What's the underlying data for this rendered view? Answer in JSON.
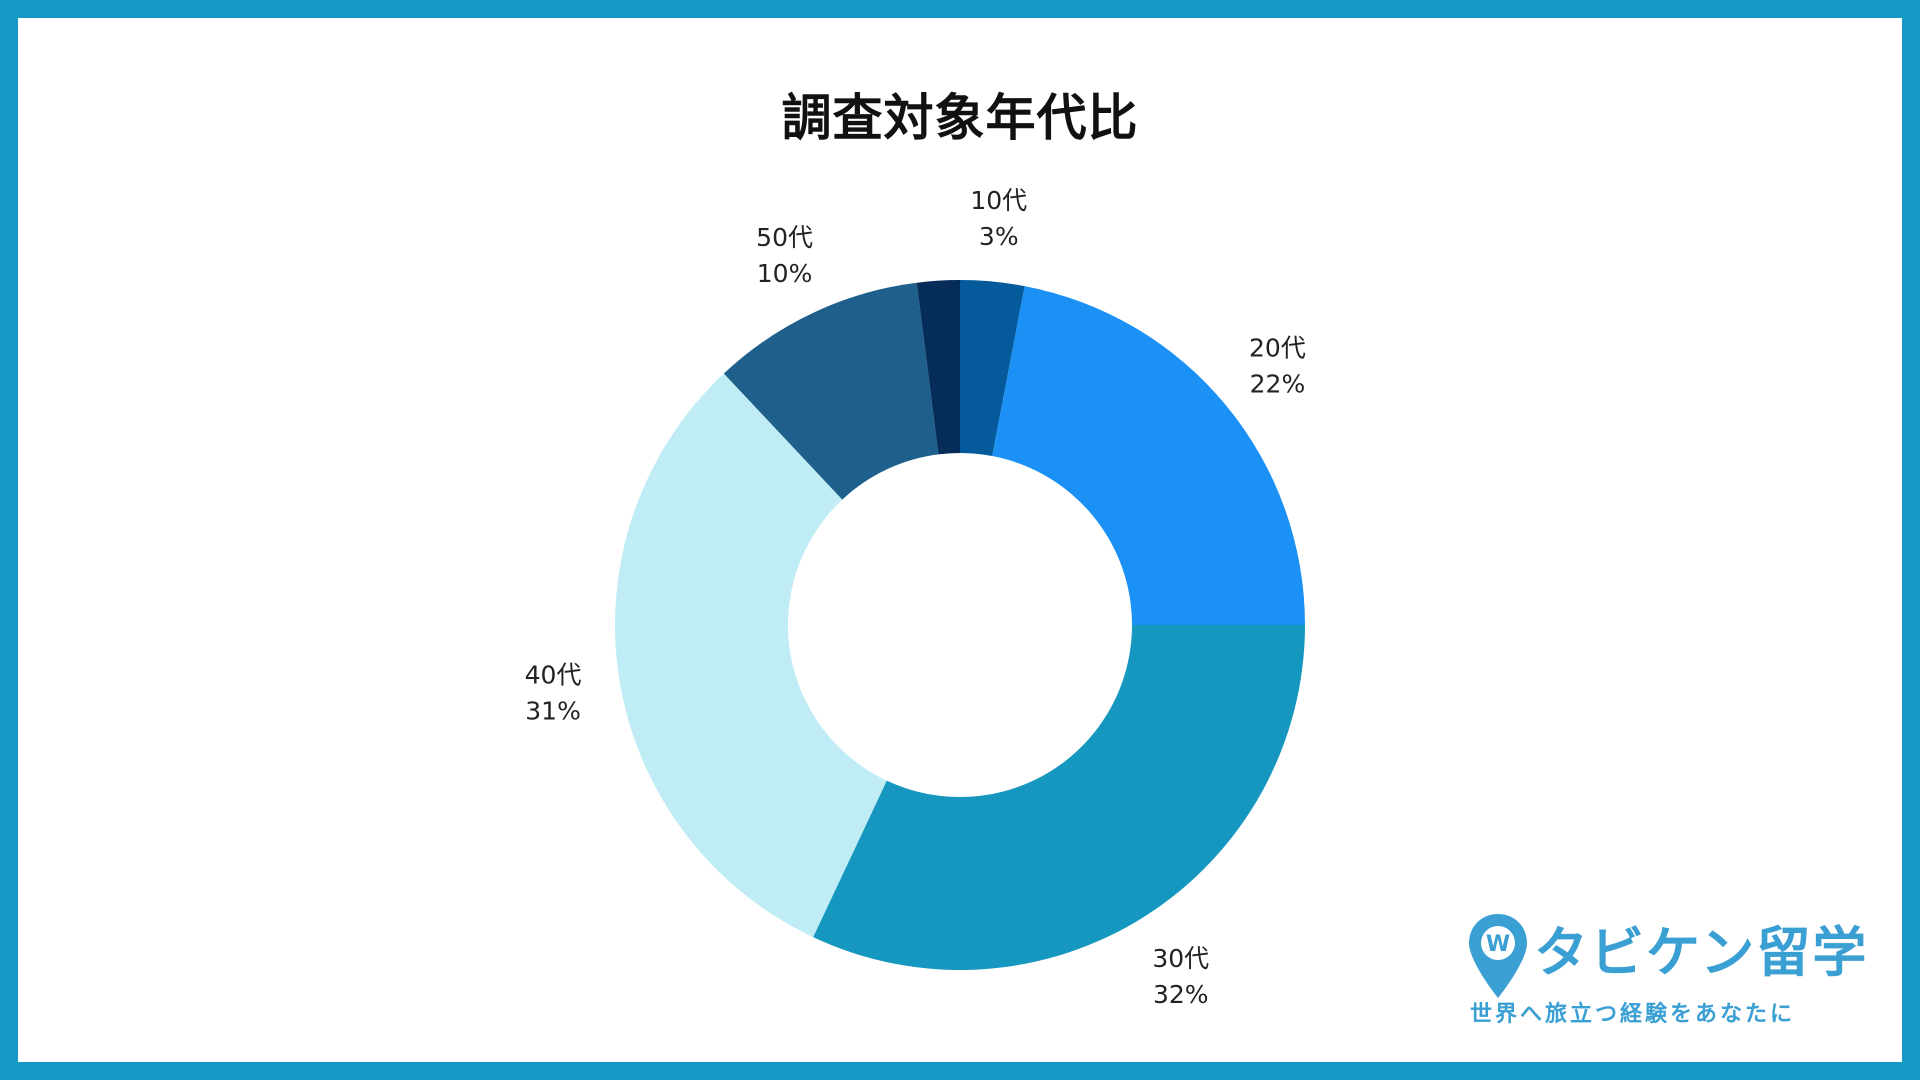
{
  "chart_data": {
    "type": "pie",
    "title": "調査対象年代比",
    "categories": [
      "10代",
      "20代",
      "30代",
      "40代",
      "50代",
      ""
    ],
    "values": [
      3,
      22,
      32,
      31,
      10,
      2
    ],
    "labels": [
      "3%",
      "22%",
      "32%",
      "31%",
      "10%",
      ""
    ],
    "colors": [
      "#045a9b",
      "#1b91f5",
      "#1597c0",
      "#c0edf5",
      "#1f5f8b",
      "#062d5a"
    ],
    "donut": true,
    "legend": "none"
  },
  "logo": {
    "name": "タビケン留学",
    "tagline": "世界へ旅立つ経験をあなたに",
    "pin_text": "W",
    "color": "#3a9fd3"
  },
  "frame": {
    "border_color": "#1697c4"
  }
}
